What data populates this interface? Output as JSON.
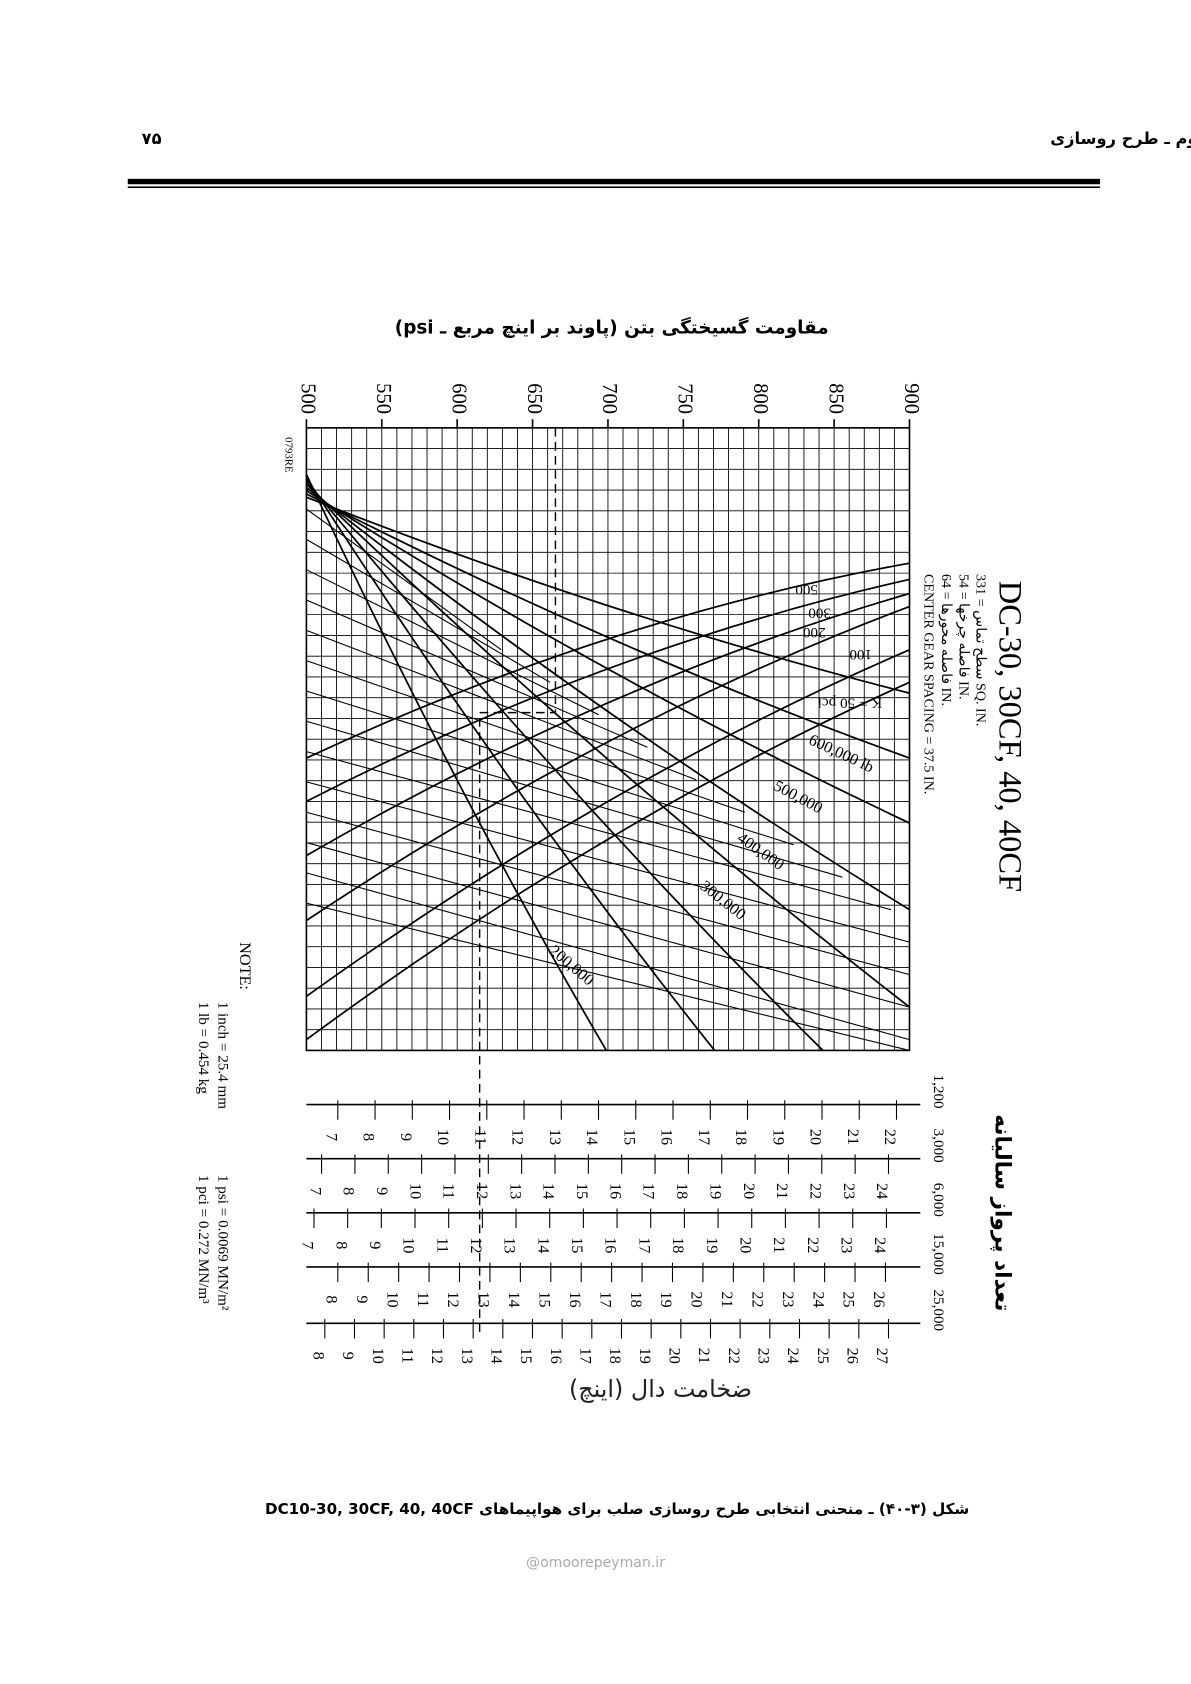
{
  "header": {
    "chapter": "فصل سوم ـ طرح روسازی",
    "page_number": "۷۵"
  },
  "figure": {
    "x_axis_title": "مقاومت گسیختگی بتن (پاوند بر اینچ مربع ـ psi)",
    "psi_ticks": [
      500,
      550,
      600,
      650,
      700,
      750,
      800,
      850,
      900
    ],
    "chart_title": "DC-30, 30CF, 40, 40CF",
    "specs": [
      "سطح تماس = 331 SQ. IN.",
      "فاصله چرخها = 54 IN.",
      "فاصله محورها = 64 IN.",
      "CENTER GEAR SPACING = 37.5 IN."
    ],
    "code": "0793RE",
    "k_labels": [
      "500",
      "300",
      "200",
      "100",
      "K = 50 pci"
    ],
    "load_labels": [
      "600,000 lb",
      "500,000",
      "400,000",
      "300,000",
      "200,000"
    ],
    "note": {
      "title": "NOTE:",
      "lines": [
        "1 inch = 25.4 mm",
        "1 lb = 0.454 kg",
        "1 psi = 0.0069 MN/m²",
        "1 pci = 0.272 MN/m³"
      ]
    },
    "departures_title": "تعداد پرواز سالیانه",
    "scales": [
      {
        "label": "1,200",
        "ticks": [
          7,
          8,
          9,
          10,
          11,
          12,
          13,
          14,
          15,
          16,
          17,
          18,
          19,
          20,
          21,
          22
        ]
      },
      {
        "label": "3,000",
        "ticks": [
          7,
          8,
          9,
          10,
          11,
          12,
          13,
          14,
          15,
          16,
          17,
          18,
          19,
          20,
          21,
          22,
          23,
          24
        ]
      },
      {
        "label": "6,000",
        "ticks": [
          7,
          8,
          9,
          10,
          11,
          12,
          13,
          14,
          15,
          16,
          17,
          18,
          19,
          20,
          21,
          22,
          23,
          24
        ]
      },
      {
        "label": "15,000",
        "ticks": [
          8,
          9,
          10,
          11,
          12,
          13,
          14,
          15,
          16,
          17,
          18,
          19,
          20,
          21,
          22,
          23,
          24,
          25,
          26
        ]
      },
      {
        "label": "25,000",
        "ticks": [
          8,
          9,
          10,
          11,
          12,
          13,
          14,
          15,
          16,
          17,
          18,
          19,
          20,
          21,
          22,
          23,
          24,
          25,
          26,
          27
        ]
      }
    ],
    "thickness_title": "ضخامت دال (اینچ)"
  },
  "caption": "شکل (۳-۴۰) ـ منحنی انتخابی طرح روسازی صلب برای هواپیماهای DC10-30, 30CF, 40, 40CF",
  "watermark": "@omoorepeyman.ir"
}
